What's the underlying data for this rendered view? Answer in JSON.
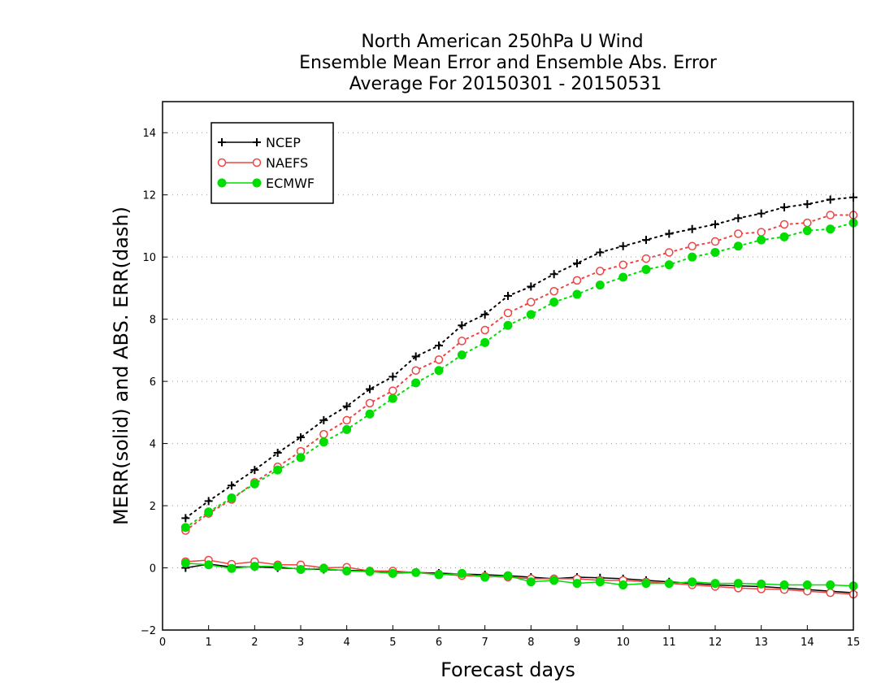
{
  "chart_data": {
    "type": "line",
    "title": [
      "North American 250hPa U Wind",
      "Ensemble Mean Error and Ensemble Abs. Error",
      "Average For 20150301 - 20150531"
    ],
    "xlabel": "Forecast days",
    "ylabel": "MERR(solid) and ABS. ERR(dash)",
    "xlim": [
      0,
      15
    ],
    "ylim": [
      -2,
      15
    ],
    "xticks": [
      "0",
      "1",
      "2",
      "3",
      "4",
      "5",
      "6",
      "7",
      "8",
      "9",
      "10",
      "11",
      "12",
      "13",
      "14",
      "15"
    ],
    "yticks": [
      "−2",
      "0",
      "2",
      "4",
      "6",
      "8",
      "10",
      "12",
      "14"
    ],
    "grid": "horizontal dotted",
    "legend_position": "top-left",
    "x": [
      0.5,
      1,
      1.5,
      2,
      2.5,
      3,
      3.5,
      4,
      4.5,
      5,
      5.5,
      6,
      6.5,
      7,
      7.5,
      8,
      8.5,
      9,
      9.5,
      10,
      10.5,
      11,
      11.5,
      12,
      12.5,
      13,
      13.5,
      14,
      14.5,
      15
    ],
    "series": [
      {
        "name": "NCEP",
        "color": "#000000",
        "marker": "plus",
        "mean_error": [
          0.0,
          0.12,
          0.03,
          0.03,
          0.0,
          -0.03,
          -0.05,
          -0.08,
          -0.1,
          -0.12,
          -0.15,
          -0.17,
          -0.2,
          -0.22,
          -0.25,
          -0.3,
          -0.35,
          -0.3,
          -0.32,
          -0.35,
          -0.4,
          -0.45,
          -0.5,
          -0.55,
          -0.58,
          -0.6,
          -0.65,
          -0.7,
          -0.75,
          -0.8
        ],
        "abs_error": [
          1.6,
          2.15,
          2.65,
          3.15,
          3.7,
          4.2,
          4.75,
          5.2,
          5.75,
          6.15,
          6.8,
          7.15,
          7.8,
          8.15,
          8.75,
          9.05,
          9.45,
          9.8,
          10.15,
          10.35,
          10.55,
          10.75,
          10.9,
          11.05,
          11.25,
          11.4,
          11.6,
          11.7,
          11.85,
          11.92
        ]
      },
      {
        "name": "NAEFS",
        "color": "#ee4444",
        "marker": "open-circle",
        "mean_error": [
          0.2,
          0.25,
          0.12,
          0.2,
          0.1,
          0.1,
          0.0,
          0.02,
          -0.1,
          -0.1,
          -0.15,
          -0.2,
          -0.25,
          -0.27,
          -0.3,
          -0.35,
          -0.35,
          -0.35,
          -0.4,
          -0.4,
          -0.45,
          -0.5,
          -0.55,
          -0.6,
          -0.65,
          -0.68,
          -0.7,
          -0.75,
          -0.8,
          -0.85
        ],
        "abs_error": [
          1.2,
          1.75,
          2.2,
          2.75,
          3.25,
          3.75,
          4.3,
          4.75,
          5.3,
          5.7,
          6.35,
          6.7,
          7.3,
          7.65,
          8.2,
          8.55,
          8.9,
          9.25,
          9.55,
          9.75,
          9.95,
          10.15,
          10.35,
          10.5,
          10.75,
          10.8,
          11.05,
          11.1,
          11.35,
          11.35
        ]
      },
      {
        "name": "ECMWF",
        "color": "#00dd00",
        "marker": "filled-circle",
        "mean_error": [
          0.15,
          0.1,
          -0.02,
          0.05,
          0.05,
          -0.05,
          -0.02,
          -0.1,
          -0.12,
          -0.18,
          -0.15,
          -0.22,
          -0.18,
          -0.3,
          -0.25,
          -0.45,
          -0.4,
          -0.5,
          -0.45,
          -0.55,
          -0.5,
          -0.5,
          -0.45,
          -0.5,
          -0.5,
          -0.52,
          -0.55,
          -0.55,
          -0.55,
          -0.58
        ],
        "abs_error": [
          1.3,
          1.8,
          2.25,
          2.7,
          3.15,
          3.55,
          4.05,
          4.45,
          4.95,
          5.45,
          5.95,
          6.35,
          6.85,
          7.25,
          7.8,
          8.15,
          8.55,
          8.8,
          9.1,
          9.35,
          9.6,
          9.75,
          10.0,
          10.15,
          10.35,
          10.55,
          10.65,
          10.85,
          10.9,
          11.1
        ]
      }
    ]
  }
}
